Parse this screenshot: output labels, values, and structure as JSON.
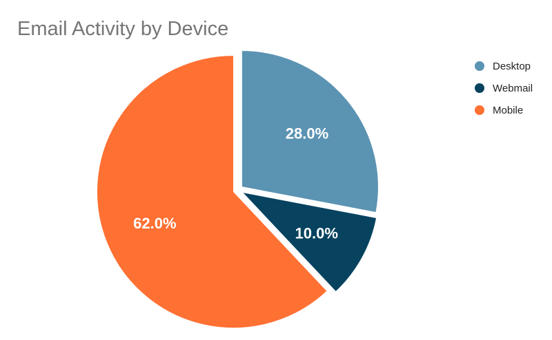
{
  "chart_data": {
    "type": "pie",
    "title": "Email Activity by Device",
    "categories": [
      "Desktop",
      "Webmail",
      "Mobile"
    ],
    "values": [
      28.0,
      10.0,
      62.0
    ],
    "labels": [
      "28.0%",
      "10.0%",
      "62.0%"
    ],
    "colors": [
      "#5b93b2",
      "#07435f",
      "#ff7033"
    ],
    "legend_position": "right",
    "start_angle": "top",
    "direction": "clockwise",
    "exploded": true
  }
}
